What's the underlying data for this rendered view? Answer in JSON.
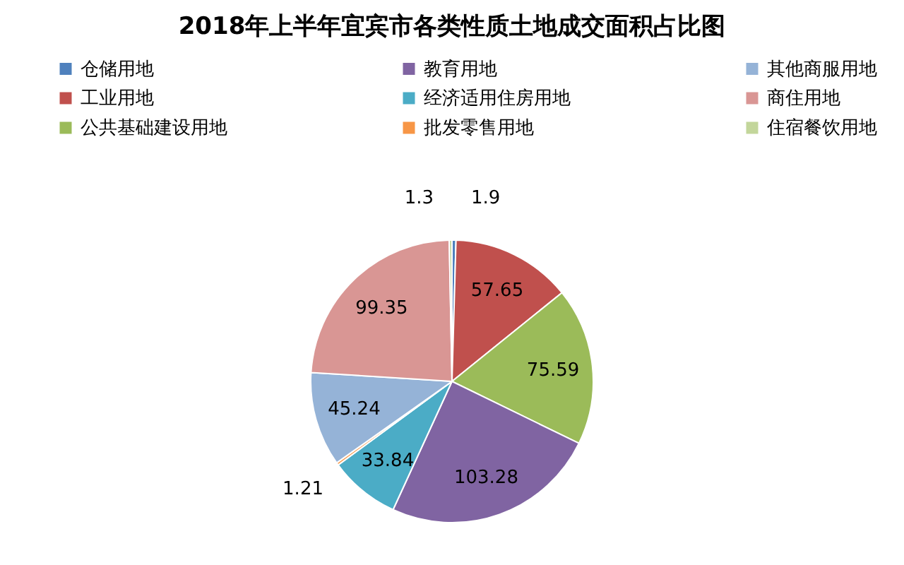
{
  "chart_data": {
    "type": "pie",
    "title": "2018年上半年宜宾市各类性质土地成交面积占比图",
    "categories": [
      "仓储用地",
      "工业用地",
      "公共基础建设用地",
      "教育用地",
      "经济适用住房用地",
      "批发零售用地",
      "其他商服用地",
      "商住用地",
      "住宿餐饮用地"
    ],
    "values": [
      1.9,
      57.65,
      75.59,
      103.28,
      33.84,
      1.21,
      45.24,
      99.35,
      1.3
    ],
    "colors": [
      "#4f81bd",
      "#c0504d",
      "#9bbb59",
      "#8064a2",
      "#4bacc6",
      "#f79646",
      "#95b3d7",
      "#d99694",
      "#c3d69b"
    ],
    "data_labels": true,
    "legend": "top"
  }
}
